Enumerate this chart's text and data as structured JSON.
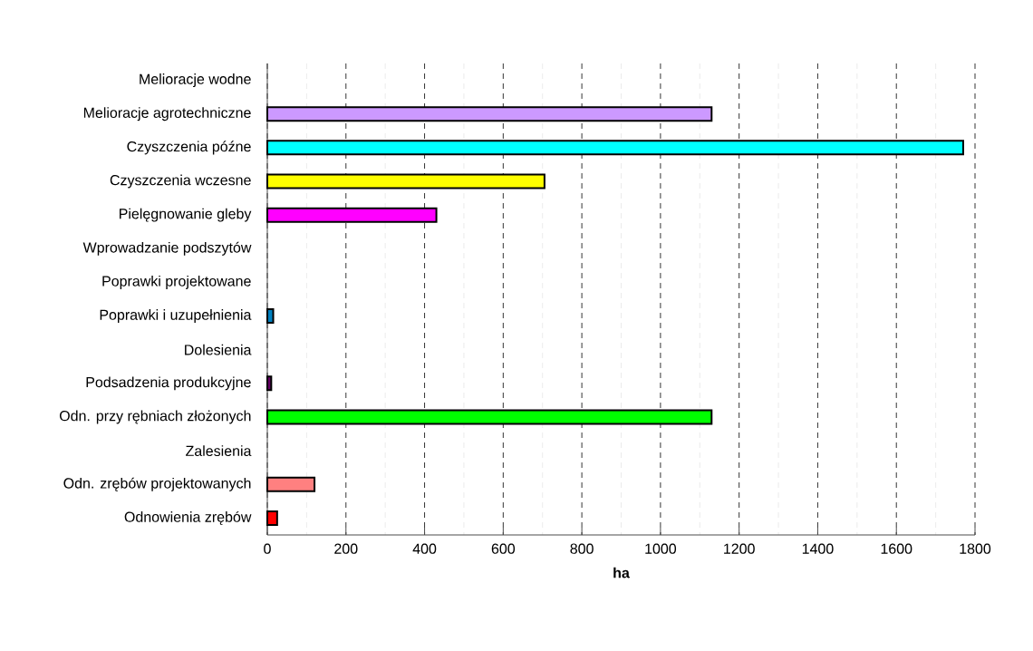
{
  "chart_data": {
    "type": "bar",
    "orientation": "horizontal",
    "xlabel": "ha",
    "categories": [
      "Melioracje wodne",
      "Melioracje agrotechniczne",
      "Czyszczenia późne",
      "Czyszczenia wczesne",
      "Pielęgnowanie gleby",
      "Wprowadzanie podszytów",
      "Poprawki projektowane",
      "Poprawki i uzupełnienia",
      "Dolesienia",
      "Podsadzenia produkcyjne",
      "Odn. przy rębniach złożonych",
      "Zalesienia",
      "Odn. zrębów projektowanych",
      "Odnowienia zrębów"
    ],
    "values": [
      null,
      1130,
      1770,
      705,
      430,
      null,
      null,
      15,
      null,
      10,
      1130,
      null,
      120,
      25
    ],
    "colors": [
      "#808080",
      "#cc99ff",
      "#00ffff",
      "#ffff00",
      "#ff00ff",
      "#808080",
      "#808080",
      "#0080c0",
      "#808080",
      "#660066",
      "#00ff00",
      "#808080",
      "#ff8080",
      "#ff0000"
    ],
    "xlim": [
      0,
      1800
    ],
    "xticks": [
      0,
      {
        "value": 100,
        "label": null
      },
      200,
      {
        "value": 300,
        "label": null
      },
      400,
      {
        "value": 500,
        "label": null
      },
      600,
      {
        "value": 700,
        "label": null
      },
      800,
      {
        "value": 900,
        "label": null
      },
      1000,
      {
        "value": 1100,
        "label": null
      },
      1200,
      {
        "value": 1300,
        "label": null
      },
      1400,
      {
        "value": 1500,
        "label": null
      },
      1600,
      {
        "value": 1700,
        "label": null
      },
      1800
    ],
    "grid": "x"
  }
}
